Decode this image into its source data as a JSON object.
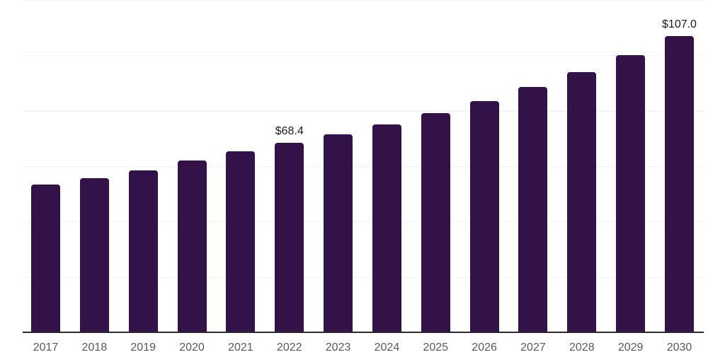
{
  "chart_data": {
    "type": "bar",
    "title": "",
    "xlabel": "",
    "ylabel": "",
    "categories": [
      "2017",
      "2018",
      "2019",
      "2020",
      "2021",
      "2022",
      "2023",
      "2024",
      "2025",
      "2026",
      "2027",
      "2028",
      "2029",
      "2030"
    ],
    "values": [
      53.4,
      55.7,
      58.4,
      62.0,
      65.4,
      68.4,
      71.5,
      75.0,
      79.1,
      83.5,
      88.6,
      94.0,
      100.1,
      107.0
    ],
    "ylim": [
      0,
      120
    ],
    "grid": true,
    "grid_step": 20,
    "y_tick_labels_visible": false,
    "legend_position": "none",
    "data_labels": [
      {
        "category": "2022",
        "text": "$68.4"
      },
      {
        "category": "2030",
        "text": "$107.0"
      }
    ]
  },
  "style": {
    "bar_color": "#33124A",
    "grid_color": "#F3F3F3",
    "axis_color": "#2B2B2B",
    "x_label_color": "#595959",
    "data_label_color": "#1A1A1A",
    "background_color": "#FFFFFF"
  }
}
